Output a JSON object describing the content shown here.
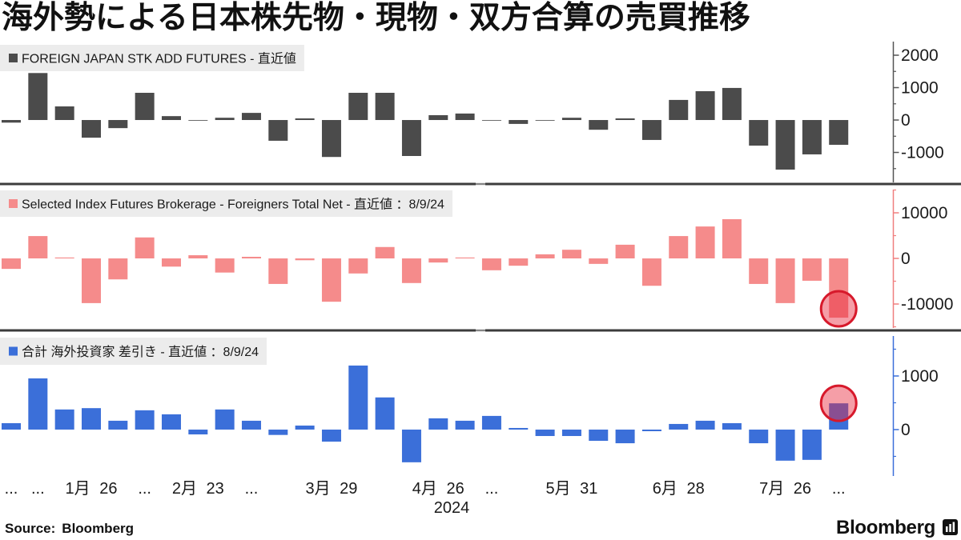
{
  "title": "海外勢による日本株先物・現物・双方合算の売買推移",
  "footer": {
    "source_label": "Source:",
    "source_value": "Bloomberg"
  },
  "brand": {
    "name": "Bloomberg",
    "icon": "bloomberg-terminal-icon"
  },
  "chart_data": {
    "type": "bar",
    "categories": [
      "...",
      "...",
      "",
      "1月 26",
      "",
      "...",
      "",
      "2月 23",
      "",
      "...",
      "",
      "",
      "3月 29",
      "",
      "",
      "",
      "4月 26",
      "",
      "...",
      "",
      "",
      "5月 31",
      "",
      "",
      "",
      "6月 28",
      "",
      "",
      "",
      "7月 26",
      "",
      "..."
    ],
    "year_label": "2024",
    "legend_position": "top-left",
    "grid": false,
    "highlight_color": "#d7192b",
    "panels": [
      {
        "series": [
          {
            "name": "FOREIGN JAPAN STK ADD FUTURES - 直近値",
            "color": "#4b4b4b",
            "values": [
              -80,
              1450,
              420,
              -545,
              -250,
              840,
              120,
              -20,
              70,
              220,
              -640,
              50,
              -1140,
              840,
              840,
              -1110,
              150,
              200,
              -15,
              -120,
              -20,
              70,
              -300,
              50,
              -615,
              620,
              890,
              990,
              -790,
              -1530,
              -1060,
              -765
            ]
          }
        ],
        "ylim": [
          -1925,
          2420
        ],
        "yticks": [
          2000,
          1000,
          0,
          -1000
        ],
        "axis_color": "#555555",
        "highlight_last": false
      },
      {
        "series": [
          {
            "name": "Selected Index Futures Brokerage - Foreigners Total Net - 直近値 ：8/9/24",
            "color": "#f58b8b",
            "values": [
              -2300,
              4900,
              200,
              -9800,
              -4600,
              4600,
              -1800,
              700,
              -3100,
              350,
              -5600,
              -400,
              -9500,
              -3300,
              2500,
              -5400,
              -900,
              200,
              -2600,
              -1600,
              900,
              1900,
              -1200,
              3000,
              -6000,
              4900,
              7000,
              8600,
              -5600,
              -9800,
              -4900,
              -13000
            ]
          }
        ],
        "ylim": [
          -15260,
          15090
        ],
        "yticks": [
          10000,
          0,
          -10000
        ],
        "axis_color": "#f07f7f",
        "highlight_last": true
      },
      {
        "series": [
          {
            "name": "合計 海外投資家 差引き - 直近値 ：8/9/24",
            "color": "#3b6fd9",
            "values": [
              120,
              955,
              375,
              400,
              165,
              360,
              285,
              -90,
              375,
              165,
              -100,
              75,
              -225,
              1195,
              600,
              -610,
              210,
              165,
              255,
              30,
              -120,
              -120,
              -210,
              -255,
              -30,
              105,
              165,
              120,
              -255,
              -580,
              -565,
              490
            ]
          }
        ],
        "ylim": [
          -866,
          1746
        ],
        "yticks": [
          1000,
          0
        ],
        "axis_color": "#3b6fd9",
        "highlight_last": true
      }
    ]
  }
}
